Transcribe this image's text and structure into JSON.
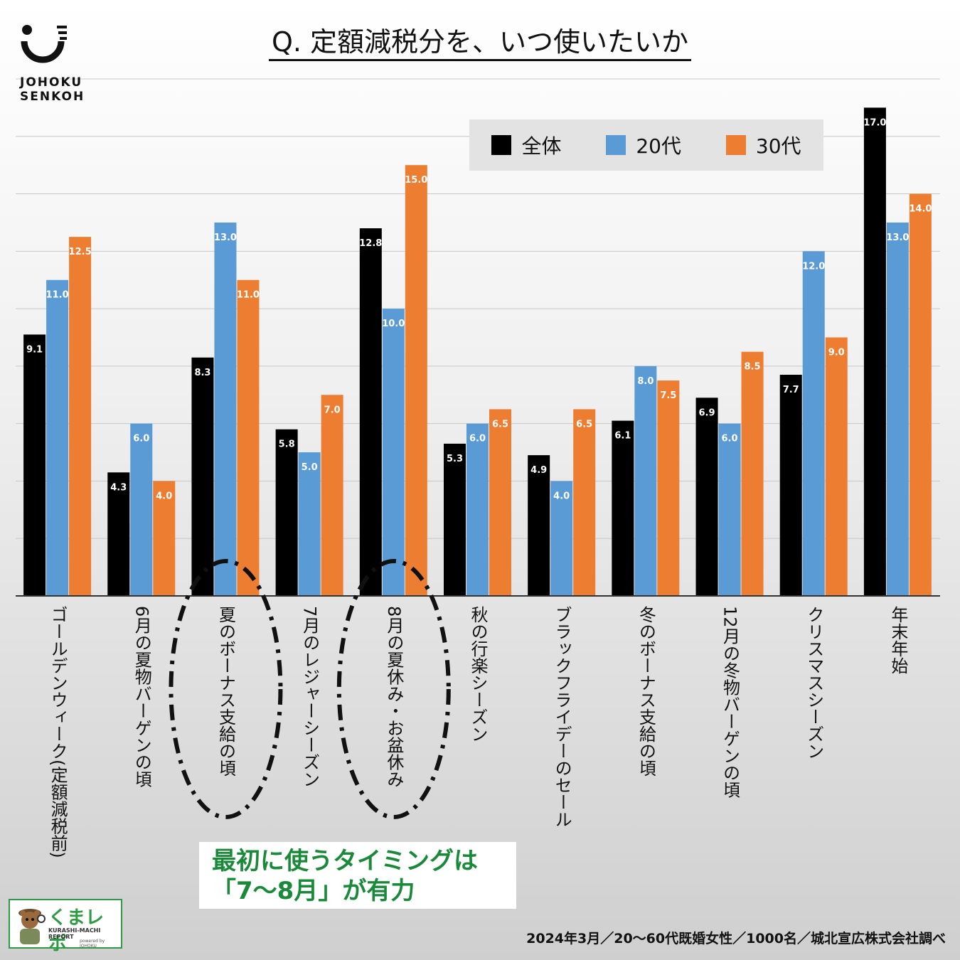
{
  "title": "Q. 定額減税分を、いつ使いたいか",
  "logo": {
    "text_line1": "JOHOKU",
    "text_line2": "SENKOH"
  },
  "legend": [
    {
      "label": "全体",
      "color": "#000000"
    },
    {
      "label": "20代",
      "color": "#5b9bd5"
    },
    {
      "label": "30代",
      "color": "#ed7d31"
    }
  ],
  "callout": {
    "line1": "最初に使うタイミングは",
    "line2": "「7〜8月」が有力",
    "color": "#1a8a3a"
  },
  "badge": {
    "title": "くまレポ",
    "subtitle": "KURASHI-MACHI REPORT",
    "powered": "powered by JOHOKU"
  },
  "source": "2024年3月／20〜60代既婚女性／1000名／城北宣広株式会社調べ",
  "chart_data": {
    "type": "bar",
    "title": "Q. 定額減税分を、いつ使いたいか",
    "categories": [
      "ゴールデンウィーク(定額減税前)",
      "6月の夏物バーゲンの頃",
      "夏のボーナス支給の頃",
      "7月のレジャーシーズン",
      "8月の夏休み・お盆休み",
      "秋の行楽シーズン",
      "ブラックフライデーのセール",
      "冬のボーナス支給の頃",
      "12月の冬物バーゲンの頃",
      "クリスマスシーズン",
      "年末年始"
    ],
    "series": [
      {
        "name": "全体",
        "color": "#000000",
        "values": [
          9.1,
          4.3,
          8.3,
          5.8,
          12.8,
          5.3,
          4.9,
          6.1,
          6.9,
          7.7,
          17.0
        ]
      },
      {
        "name": "20代",
        "color": "#5b9bd5",
        "values": [
          11.0,
          6.0,
          13.0,
          5.0,
          10.0,
          6.0,
          4.0,
          8.0,
          6.0,
          12.0,
          13.0
        ]
      },
      {
        "name": "30代",
        "color": "#ed7d31",
        "values": [
          12.5,
          4.0,
          11.0,
          7.0,
          15.0,
          6.5,
          6.5,
          7.5,
          8.5,
          9.0,
          14.0
        ]
      }
    ],
    "ylim": [
      0,
      18
    ],
    "grid": true,
    "highlighted_categories": [
      "夏のボーナス支給の頃",
      "8月の夏休み・お盆休み"
    ],
    "xlabel": "",
    "ylabel": ""
  }
}
